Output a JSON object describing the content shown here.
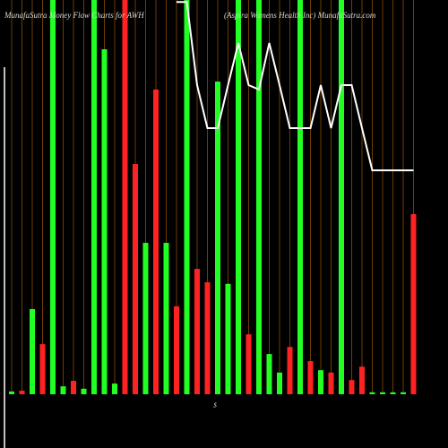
{
  "chart_data": {
    "type": "bar",
    "title": "MunafaSutra  Money Flow  Charts for AWH",
    "subtitle": "(Aspira Womens Health Inc) MunafaSutra.com",
    "x_label": "$",
    "categories": [
      null,
      null,
      null,
      null,
      null,
      null,
      null,
      null,
      null,
      null,
      null,
      null,
      null,
      null,
      null,
      null,
      null,
      null,
      null,
      null,
      null,
      null,
      null,
      null,
      null,
      null,
      null,
      null,
      null,
      null,
      null,
      null,
      null,
      null,
      null,
      null,
      null,
      null,
      null,
      null
    ],
    "values": [
      0.7,
      0.9,
      21.6,
      12.7,
      100,
      2.0,
      3.4,
      1.4,
      100,
      87.5,
      2.7,
      100,
      58.4,
      38.4,
      77.3,
      38.4,
      22.3,
      100,
      31.8,
      28.4,
      79.3,
      28.0,
      100,
      15.2,
      100,
      10.2,
      5.5,
      12.0,
      100,
      8.4,
      6.1,
      5.5,
      100,
      3.6,
      7.0,
      0.5,
      0.5,
      0.5,
      0.5,
      45.7
    ],
    "colors": [
      "#22ff22",
      "#ff2222",
      "#22ff22",
      "#ff2222",
      "#22ff22",
      "#22ff22",
      "#ff2222",
      "#22ff22",
      "#22ff22",
      "#22ff22",
      "#22ff22",
      "#ff2222",
      "#ff2222",
      "#22ff22",
      "#ff2222",
      "#22ff22",
      "#ff2222",
      "#22ff22",
      "#ff2222",
      "#ff2222",
      "#22ff22",
      "#22ff22",
      "#22ff22",
      "#ff2222",
      "#22ff22",
      "#22ff22",
      "#22ff22",
      "#ff2222",
      "#22ff22",
      "#ff2222",
      "#22ff22",
      "#ff2222",
      "#22ff22",
      "#ff2222",
      "#ff2222",
      "#22ff22",
      "#22ff22",
      "#22ff22",
      "#22ff22",
      "#ff2222"
    ],
    "line": {
      "color": "#ffffff",
      "values": [
        null,
        null,
        null,
        null,
        null,
        null,
        null,
        null,
        null,
        null,
        null,
        null,
        null,
        null,
        null,
        null,
        99.5,
        99.5,
        78.4,
        67.5,
        67.5,
        78.4,
        89.1,
        78.4,
        77.3,
        89.1,
        78.4,
        67.5,
        67.5,
        67.5,
        78.4,
        67.5,
        78.4,
        78.4,
        67.5,
        56.8,
        56.8,
        56.8,
        56.8,
        56.8
      ]
    },
    "ylim": [
      0,
      100
    ],
    "grid_color": "#b8650a"
  }
}
